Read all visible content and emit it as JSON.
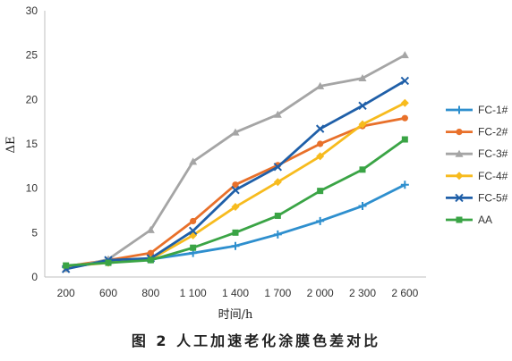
{
  "chart_data": {
    "type": "line",
    "title": "",
    "xlabel": "时间/h",
    "ylabel": "ΔE",
    "ylim": [
      0,
      30
    ],
    "yticks": [
      0,
      5,
      10,
      15,
      20,
      25,
      30
    ],
    "grid": false,
    "legend_position": "right",
    "categories": [
      "200",
      "600",
      "800",
      "1 100",
      "1 400",
      "1 700",
      "2 000",
      "2 300",
      "2 600"
    ],
    "series": [
      {
        "name": "FC-1#",
        "color": "#2e8fce",
        "marker": "plus",
        "values": [
          1.1,
          1.7,
          2.0,
          2.7,
          3.5,
          4.8,
          6.3,
          8.0,
          10.4
        ]
      },
      {
        "name": "FC-2#",
        "color": "#e8702a",
        "marker": "circle",
        "values": [
          1.2,
          1.9,
          2.7,
          6.3,
          10.4,
          12.6,
          15.0,
          17.0,
          17.9
        ]
      },
      {
        "name": "FC-3#",
        "color": "#a5a5a5",
        "marker": "triangle",
        "values": [
          0.9,
          2.0,
          5.3,
          13.0,
          16.3,
          18.3,
          21.5,
          22.4,
          25.0
        ]
      },
      {
        "name": "FC-4#",
        "color": "#f7bb1e",
        "marker": "diamond",
        "values": [
          1.2,
          1.6,
          2.0,
          4.7,
          7.9,
          10.7,
          13.6,
          17.2,
          19.6
        ]
      },
      {
        "name": "FC-5#",
        "color": "#1f5fa8",
        "marker": "x",
        "values": [
          0.9,
          1.9,
          2.1,
          5.2,
          9.8,
          12.4,
          16.7,
          19.3,
          22.1
        ]
      },
      {
        "name": "AA",
        "color": "#3aa445",
        "marker": "square",
        "values": [
          1.3,
          1.6,
          1.9,
          3.3,
          5.0,
          6.9,
          9.7,
          12.1,
          15.5
        ]
      }
    ]
  },
  "caption": "图 2  人工加速老化涂膜色差对比"
}
